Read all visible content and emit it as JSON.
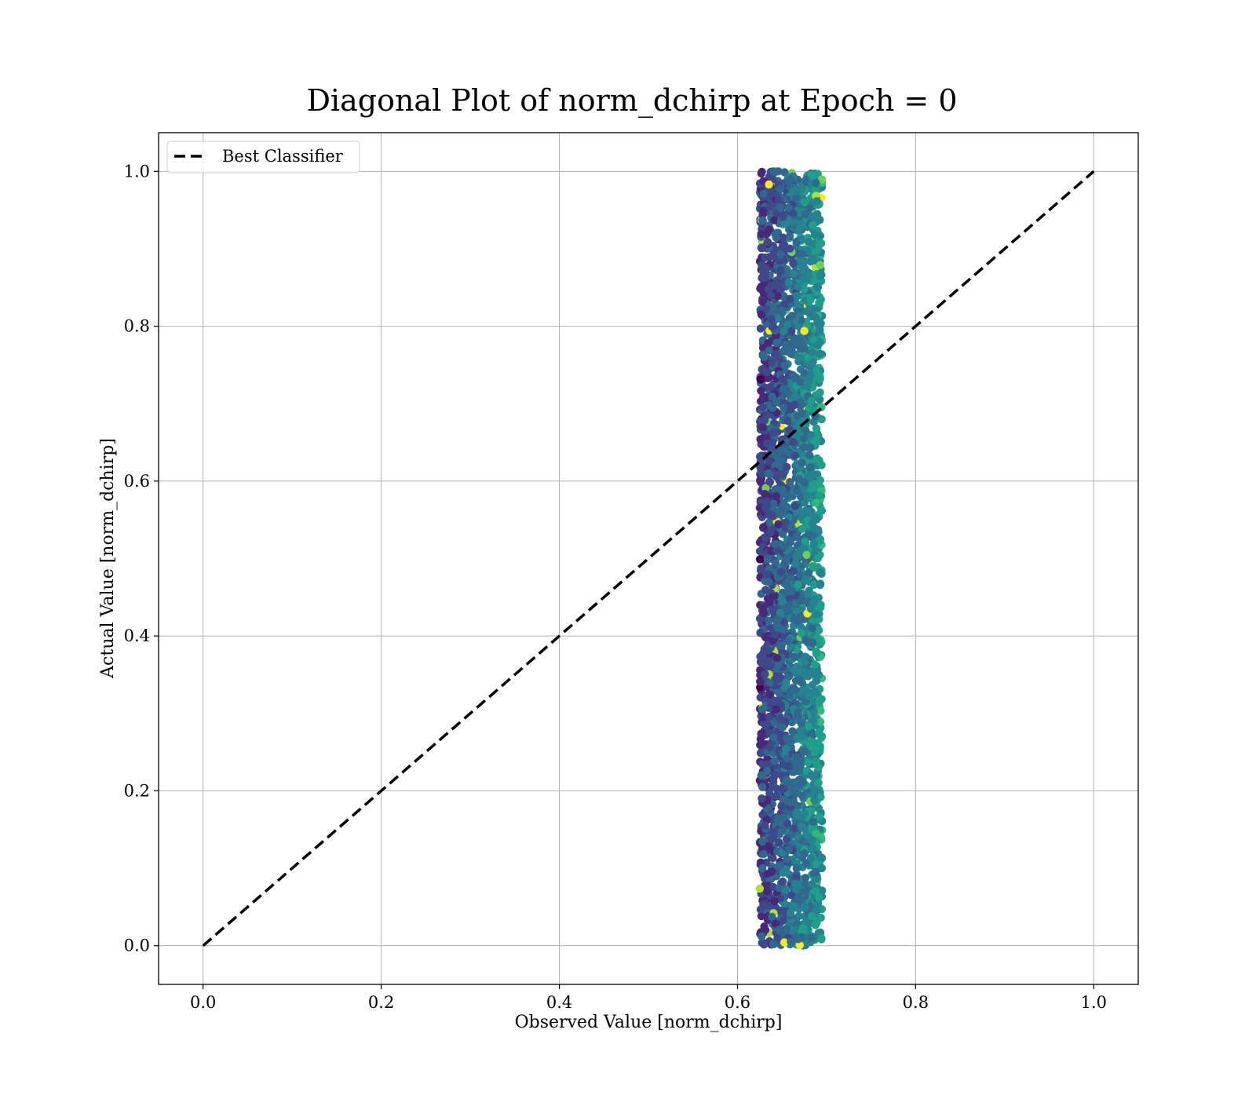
{
  "chart_data": {
    "type": "scatter",
    "title": "Diagonal Plot of norm_dchirp at Epoch = 0",
    "xlabel": "Observed Value [norm_dchirp]",
    "ylabel": "Actual Value [norm_dchirp]",
    "xlim": [
      -0.05,
      1.05
    ],
    "ylim": [
      -0.05,
      1.05
    ],
    "xticks": [
      0.0,
      0.2,
      0.4,
      0.6,
      0.8,
      1.0
    ],
    "yticks": [
      0.0,
      0.2,
      0.4,
      0.6,
      0.8,
      1.0
    ],
    "xtick_labels": [
      "0.0",
      "0.2",
      "0.4",
      "0.6",
      "0.8",
      "1.0"
    ],
    "ytick_labels": [
      "0.0",
      "0.2",
      "0.4",
      "0.6",
      "0.8",
      "1.0"
    ],
    "grid": true,
    "legend": {
      "placement": "upper-left",
      "entries": [
        "Best Classifier"
      ]
    },
    "reference_line": {
      "name": "Best Classifier",
      "style": "dashed",
      "color": "#000000",
      "x": [
        0.0,
        1.0
      ],
      "y": [
        0.0,
        1.0
      ]
    },
    "scatter": {
      "colormap": "viridis",
      "observed_range": [
        0.625,
        0.695
      ],
      "actual_range": [
        0.0,
        1.0
      ],
      "approx_point_count": 3000,
      "representative_points": [
        {
          "x": 0.64,
          "y": 1.0
        },
        {
          "x": 0.66,
          "y": 0.99
        },
        {
          "x": 0.688,
          "y": 0.985
        },
        {
          "x": 0.63,
          "y": 0.76
        },
        {
          "x": 0.675,
          "y": 0.74
        },
        {
          "x": 0.635,
          "y": 0.47
        },
        {
          "x": 0.684,
          "y": 0.41
        },
        {
          "x": 0.628,
          "y": 0.305
        },
        {
          "x": 0.628,
          "y": 0.205
        },
        {
          "x": 0.66,
          "y": 0.185
        },
        {
          "x": 0.685,
          "y": 0.16
        },
        {
          "x": 0.628,
          "y": 0.1
        },
        {
          "x": 0.688,
          "y": 0.095
        },
        {
          "x": 0.64,
          "y": 0.002
        },
        {
          "x": 0.66,
          "y": 0.005
        },
        {
          "x": 0.683,
          "y": 0.01
        }
      ]
    },
    "colors": {
      "viridis": [
        "#440154",
        "#482878",
        "#3e4989",
        "#31688e",
        "#26828e",
        "#1f9e89",
        "#35b779",
        "#6ece58",
        "#b5de2b",
        "#fde725"
      ],
      "grid": "#b0b0b0",
      "axis": "#000000"
    }
  }
}
